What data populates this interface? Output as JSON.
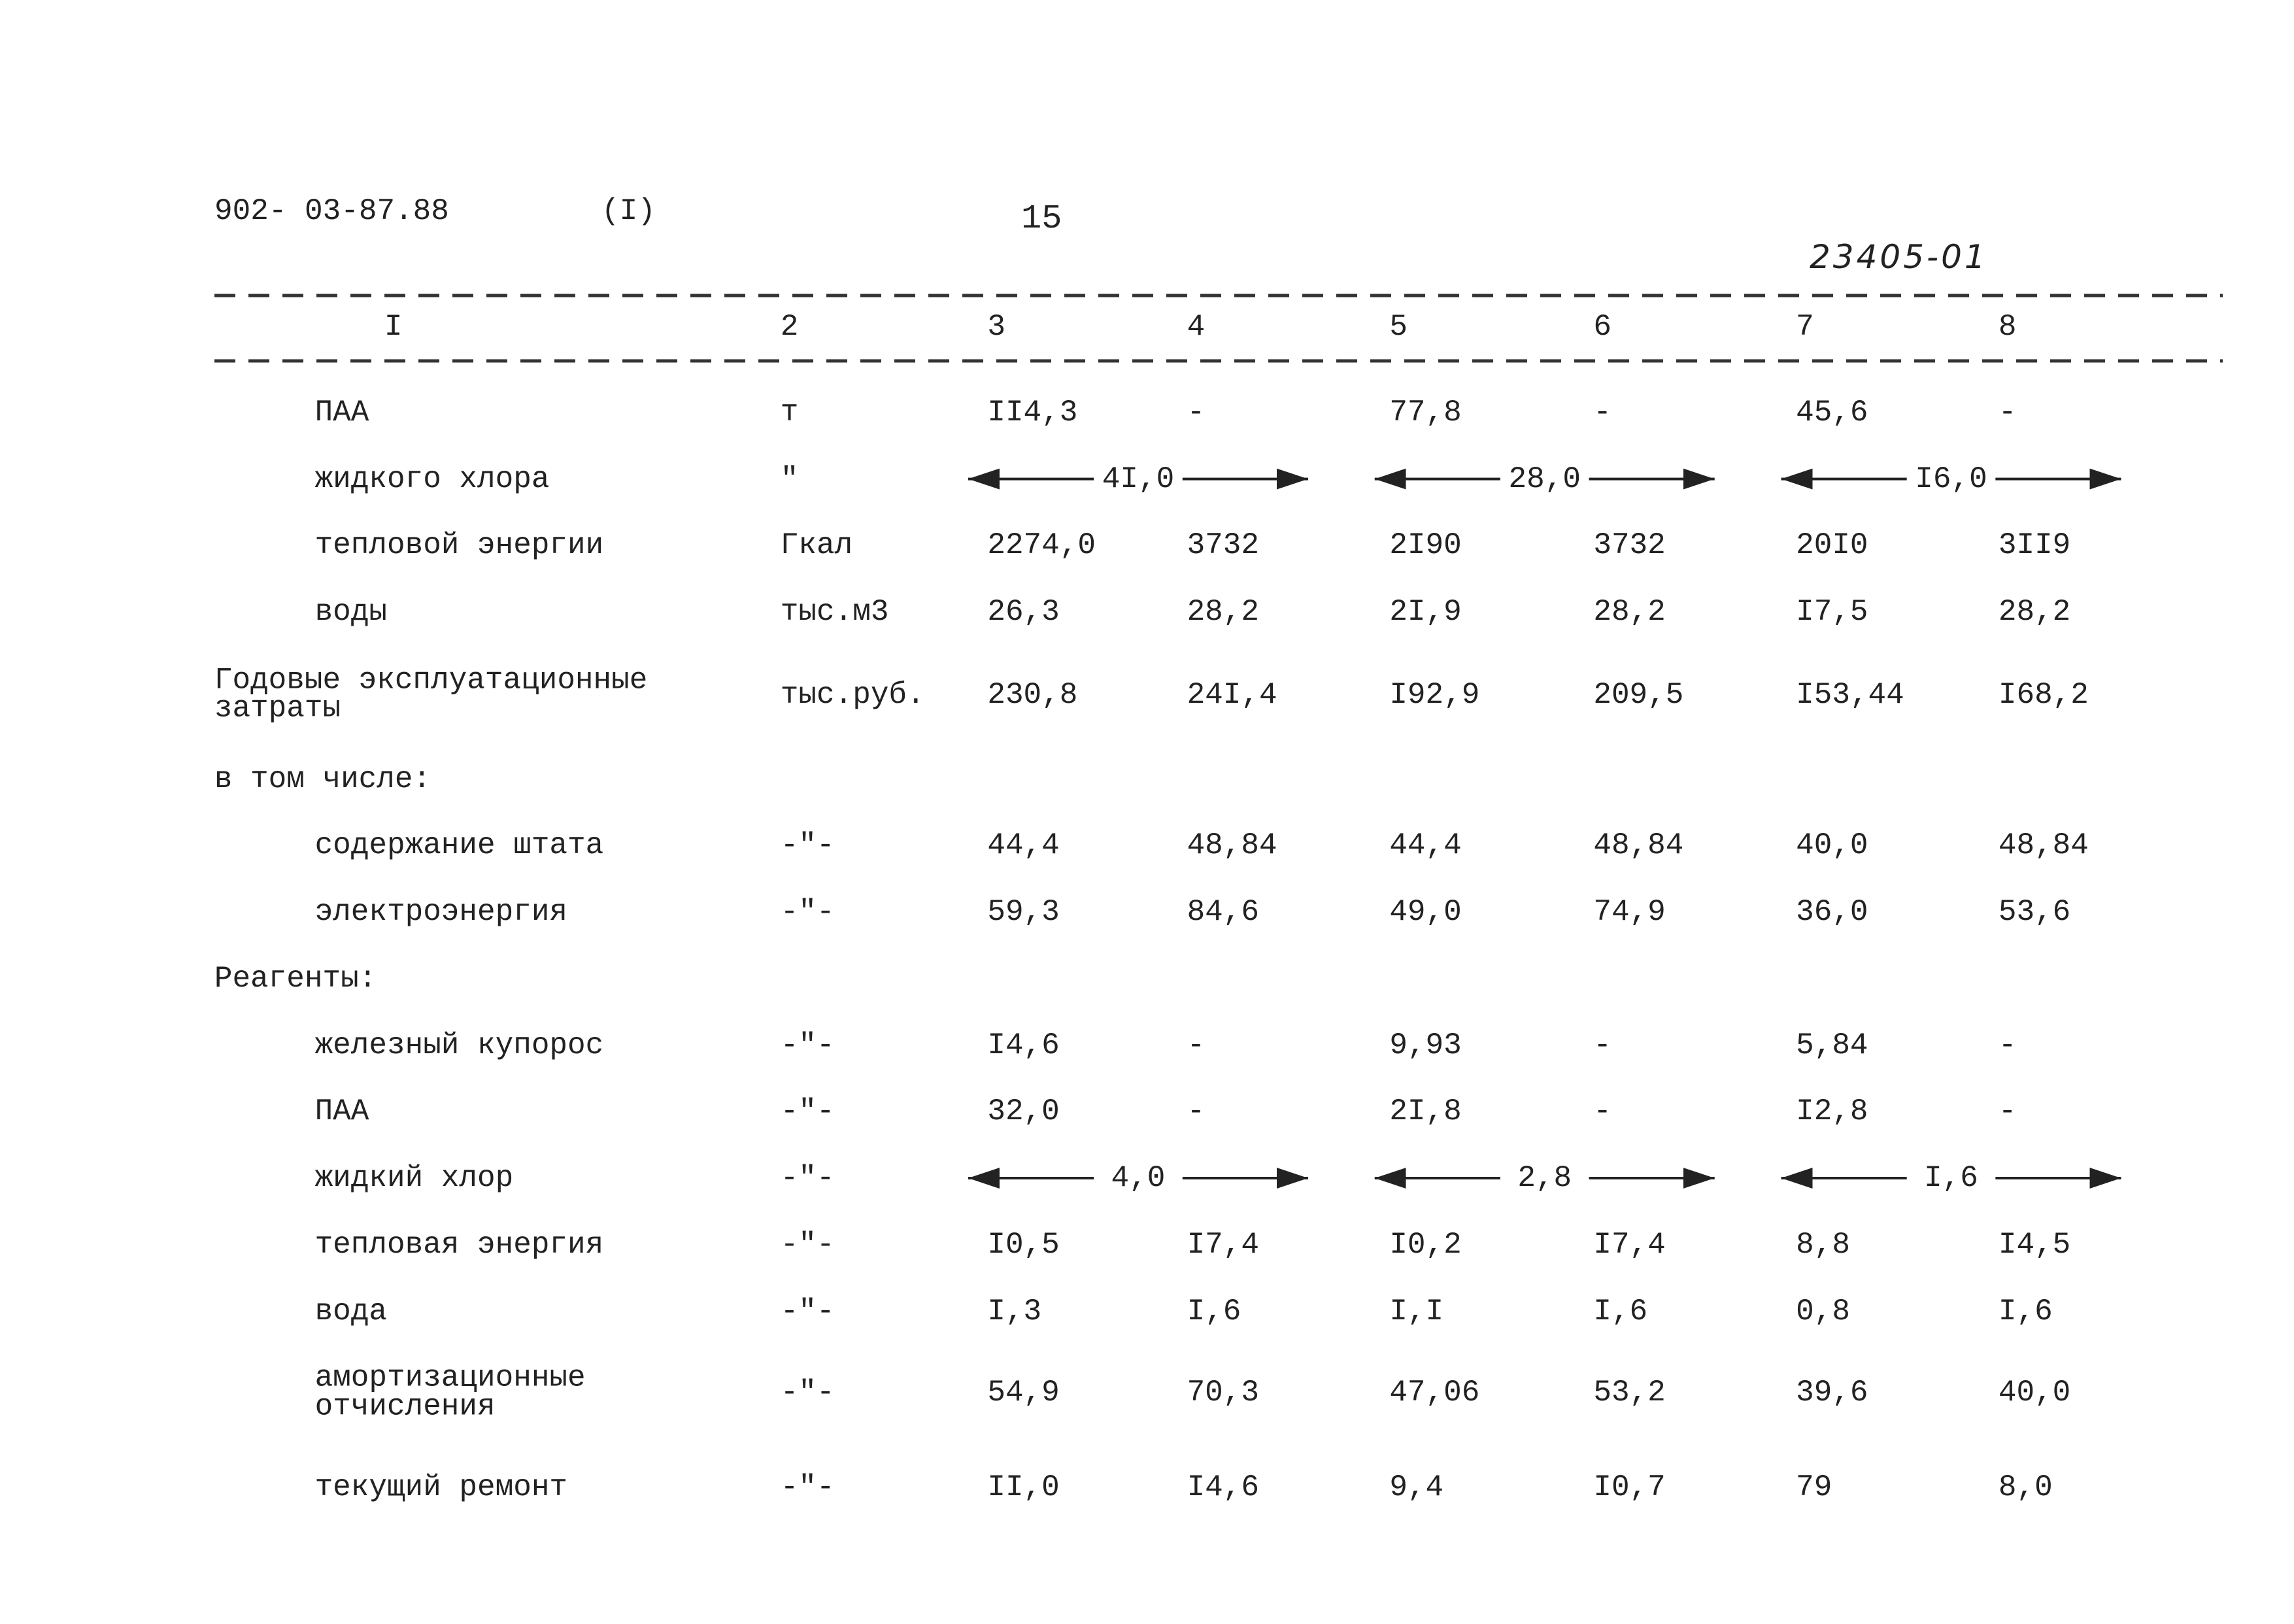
{
  "header": {
    "code": "902- 03-87.88",
    "part": "(I)",
    "page": "15",
    "doc_number": "23405-01"
  },
  "table": {
    "columns": [
      "I",
      "2",
      "3",
      "4",
      "5",
      "6",
      "7",
      "8"
    ],
    "rows": [
      {
        "label": [
          "ПАА"
        ],
        "unit": "т",
        "cells": [
          "II4,3",
          "-",
          "77,8",
          "-",
          "45,6",
          "-"
        ]
      },
      {
        "label": [
          "жидкого хлора"
        ],
        "unit": "\"",
        "spans": [
          "4I,0",
          "28,0",
          "I6,0"
        ]
      },
      {
        "label": [
          "тепловой энергии"
        ],
        "unit": "Гкал",
        "cells": [
          "2274,0",
          "3732",
          "2I90",
          "3732",
          "20I0",
          "3II9"
        ]
      },
      {
        "label": [
          "воды"
        ],
        "unit": "тыс.м3",
        "cells": [
          "26,3",
          "28,2",
          "2I,9",
          "28,2",
          "I7,5",
          "28,2"
        ]
      },
      {
        "label": [
          "Годовые эксплуатационные",
          "затраты"
        ],
        "unit": "тыс.руб.",
        "cells": [
          "230,8",
          "24I,4",
          "I92,9",
          "209,5",
          "I53,44",
          "I68,2"
        ]
      },
      {
        "label": [
          "в том числе:"
        ]
      },
      {
        "label": [
          "содержание штата"
        ],
        "unit": "-\"-",
        "cells": [
          "44,4",
          "48,84",
          "44,4",
          "48,84",
          "40,0",
          "48,84"
        ]
      },
      {
        "label": [
          "электроэнергия"
        ],
        "unit": "-\"-",
        "cells": [
          "59,3",
          "84,6",
          "49,0",
          "74,9",
          "36,0",
          "53,6"
        ]
      },
      {
        "label": [
          "Реагенты:"
        ]
      },
      {
        "label": [
          "железный купорос"
        ],
        "unit": "-\"-",
        "cells": [
          "I4,6",
          "-",
          "9,93",
          "-",
          "5,84",
          "-"
        ]
      },
      {
        "label": [
          "ПАА"
        ],
        "unit": "-\"-",
        "cells": [
          "32,0",
          "-",
          "2I,8",
          "-",
          "I2,8",
          "-"
        ]
      },
      {
        "label": [
          "жидкий хлор"
        ],
        "unit": "-\"-",
        "spans": [
          "4,0",
          "2,8",
          "I,6"
        ]
      },
      {
        "label": [
          "тепловая энергия"
        ],
        "unit": "-\"-",
        "cells": [
          "I0,5",
          "I7,4",
          "I0,2",
          "I7,4",
          "8,8",
          "I4,5"
        ]
      },
      {
        "label": [
          "вода"
        ],
        "unit": "-\"-",
        "cells": [
          "I,3",
          "I,6",
          "I,I",
          "I,6",
          "0,8",
          "I,6"
        ]
      },
      {
        "label": [
          "амортизационные",
          "отчисления"
        ],
        "unit": "-\"-",
        "cells": [
          "54,9",
          "70,3",
          "47,06",
          "53,2",
          "39,6",
          "40,0"
        ]
      },
      {
        "label": [
          "текущий ремонт"
        ],
        "unit": "-\"-",
        "cells": [
          "II,0",
          "I4,6",
          "9,4",
          "I0,7",
          "79",
          "8,0"
        ]
      }
    ]
  }
}
